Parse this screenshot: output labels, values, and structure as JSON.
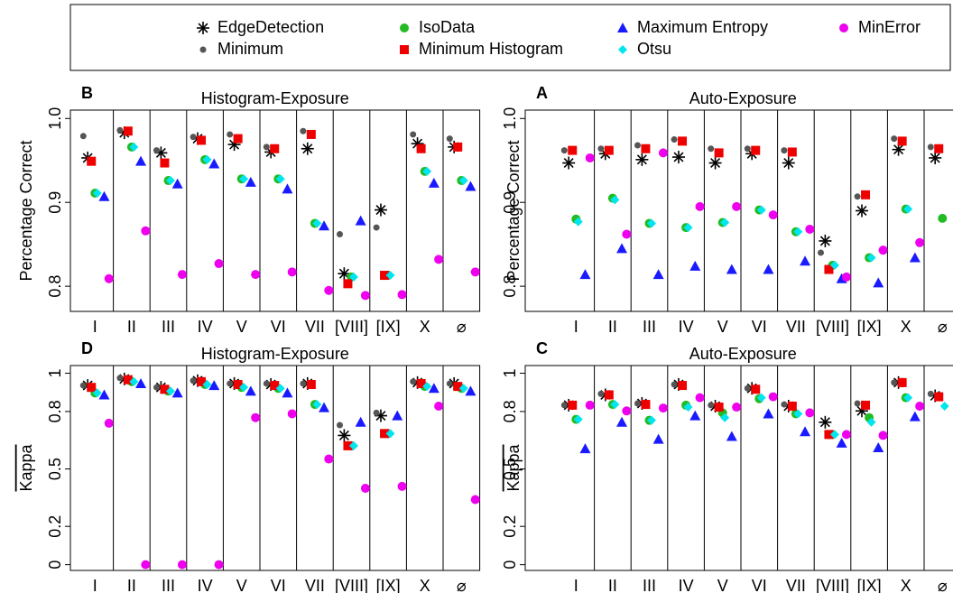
{
  "legend": {
    "entries": [
      {
        "name": "EdgeDetection",
        "color": "#000000",
        "marker": "asterisk"
      },
      {
        "name": "Minimum",
        "color": "#555555",
        "marker": "dot"
      },
      {
        "name": "IsoData",
        "color": "#22bb22",
        "marker": "circle"
      },
      {
        "name": "Minimum Histogram",
        "color": "#ee0000",
        "marker": "square"
      },
      {
        "name": "Maximum Entropy",
        "color": "#1a1aff",
        "marker": "triangle"
      },
      {
        "name": "Otsu",
        "color": "#00e5ee",
        "marker": "diamond"
      },
      {
        "name": "MinError",
        "color": "#ee00ee",
        "marker": "circle2"
      }
    ]
  },
  "chart_data": [
    {
      "type": "dot",
      "panel": "B",
      "title": "Histogram-Exposure",
      "y_label": "Percentage Correct",
      "categories": [
        "I",
        "II",
        "III",
        "IV",
        "V",
        "VI",
        "VII",
        "[VIII]",
        "[IX]",
        "X",
        "⌀"
      ],
      "ylim": [
        0.77,
        1.01
      ],
      "yticks": [
        {
          "value": 0.8,
          "label": "0.8"
        },
        {
          "value": 0.9,
          "label": "0.9"
        },
        {
          "value": 1.0,
          "label": "1.0"
        }
      ],
      "series": [
        {
          "name": "EdgeDetection",
          "values": [
            0.953,
            0.983,
            0.959,
            0.976,
            0.969,
            0.96,
            0.964,
            0.815,
            0.891,
            0.97,
            0.966
          ]
        },
        {
          "name": "Minimum",
          "values": [
            0.979,
            0.986,
            0.962,
            0.978,
            0.981,
            0.966,
            0.985,
            0.862,
            0.87,
            0.981,
            0.976
          ]
        },
        {
          "name": "IsoData",
          "values": [
            0.911,
            0.966,
            0.926,
            0.951,
            0.928,
            0.928,
            0.875,
            0.811,
            0.813,
            0.937,
            0.926
          ]
        },
        {
          "name": "Minimum Histogram",
          "values": [
            0.949,
            0.985,
            0.947,
            0.974,
            0.976,
            0.964,
            0.981,
            0.803,
            0.813,
            0.964,
            0.966
          ]
        },
        {
          "name": "Maximum Entropy",
          "values": [
            0.907,
            0.949,
            0.922,
            0.946,
            0.924,
            0.916,
            0.872,
            0.878,
            null,
            0.923,
            0.919
          ]
        },
        {
          "name": "Otsu",
          "values": [
            0.911,
            0.966,
            0.926,
            0.951,
            0.928,
            0.928,
            0.875,
            0.811,
            0.813,
            0.937,
            0.926
          ]
        },
        {
          "name": "MinError",
          "values": [
            0.809,
            0.866,
            0.814,
            0.827,
            0.814,
            0.817,
            0.795,
            0.789,
            0.79,
            0.832,
            0.817
          ]
        }
      ]
    },
    {
      "type": "dot",
      "panel": "A",
      "title": "Auto-Exposure",
      "y_label": "Percentage Correct",
      "categories": [
        "I",
        "II",
        "III",
        "IV",
        "V",
        "VI",
        "VII",
        "[VIII]",
        "[IX]",
        "X",
        "⌀"
      ],
      "ylim": [
        0.77,
        1.01
      ],
      "yticks": [
        {
          "value": 0.8,
          "label": "0.8"
        },
        {
          "value": 0.9,
          "label": "0.9"
        },
        {
          "value": 1.0,
          "label": "1.0"
        }
      ],
      "series": [
        {
          "name": "EdgeDetection",
          "values": [
            0.947,
            0.958,
            0.951,
            0.954,
            0.947,
            0.958,
            0.947,
            0.854,
            0.89,
            0.963,
            0.953
          ]
        },
        {
          "name": "Minimum",
          "values": [
            0.962,
            0.964,
            0.968,
            0.975,
            0.964,
            0.964,
            0.962,
            0.84,
            0.907,
            0.976,
            0.966
          ]
        },
        {
          "name": "IsoData",
          "values": [
            0.88,
            0.905,
            0.875,
            0.87,
            0.876,
            0.891,
            0.865,
            0.825,
            0.834,
            0.892,
            0.881
          ]
        },
        {
          "name": "Minimum Histogram",
          "values": [
            0.962,
            0.962,
            0.964,
            0.973,
            0.959,
            0.962,
            0.96,
            0.82,
            0.909,
            0.973,
            0.964
          ]
        },
        {
          "name": "Maximum Entropy",
          "values": [
            0.814,
            0.845,
            0.814,
            0.824,
            0.82,
            0.82,
            0.83,
            0.809,
            0.804,
            0.834,
            null
          ]
        },
        {
          "name": "Otsu",
          "values": [
            0.877,
            0.903,
            0.875,
            0.87,
            0.876,
            0.891,
            0.865,
            0.825,
            0.834,
            0.892,
            null
          ]
        },
        {
          "name": "MinError",
          "values": [
            0.953,
            0.862,
            0.959,
            0.895,
            0.895,
            0.885,
            0.868,
            0.811,
            0.843,
            0.852,
            0.895
          ]
        }
      ]
    },
    {
      "type": "dot",
      "panel": "D",
      "title": "Histogram-Exposure",
      "y_label": "Kappa",
      "categories": [
        "I",
        "II",
        "III",
        "IV",
        "V",
        "VI",
        "VII",
        "[VIII]",
        "[IX]",
        "X",
        "⌀"
      ],
      "ylim": [
        -0.03,
        1.04
      ],
      "yticks": [
        0,
        0.2,
        0.5,
        0.8,
        1
      ],
      "series": [
        {
          "name": "EdgeDetection",
          "values": [
            0.936,
            0.97,
            0.926,
            0.961,
            0.946,
            0.941,
            0.946,
            0.675,
            0.778,
            0.951,
            0.946
          ]
        },
        {
          "name": "Minimum",
          "values": [
            0.936,
            0.975,
            0.926,
            0.961,
            0.946,
            0.946,
            0.946,
            0.729,
            0.793,
            0.956,
            0.946
          ]
        },
        {
          "name": "IsoData",
          "values": [
            0.897,
            0.956,
            0.906,
            0.941,
            0.926,
            0.921,
            0.837,
            0.621,
            0.685,
            0.931,
            0.921
          ]
        },
        {
          "name": "Minimum Histogram",
          "values": [
            0.926,
            0.966,
            0.916,
            0.956,
            0.941,
            0.936,
            0.941,
            0.621,
            0.685,
            0.946,
            0.931
          ]
        },
        {
          "name": "Maximum Entropy",
          "values": [
            0.887,
            0.946,
            0.897,
            0.936,
            0.906,
            0.897,
            0.82,
            0.744,
            0.778,
            0.921,
            0.906
          ]
        },
        {
          "name": "Otsu",
          "values": [
            0.897,
            0.956,
            0.906,
            0.941,
            0.926,
            0.921,
            0.837,
            0.621,
            0.685,
            0.931,
            0.921
          ]
        },
        {
          "name": "MinError",
          "values": [
            0.739,
            0,
            0,
            0,
            0.768,
            0.788,
            0.552,
            0.399,
            0.409,
            0.828,
            0.34
          ]
        }
      ]
    },
    {
      "type": "dot",
      "panel": "C",
      "title": "Auto-Exposure",
      "y_label": "Kappa",
      "categories": [
        "I",
        "II",
        "III",
        "IV",
        "V",
        "VI",
        "VII",
        "[VIII]",
        "[IX]",
        "X",
        "⌀"
      ],
      "ylim": [
        -0.03,
        1.04
      ],
      "yticks": [
        0,
        0.2,
        0.5,
        0.8,
        1
      ],
      "series": [
        {
          "name": "EdgeDetection",
          "values": [
            0.833,
            0.887,
            0.842,
            0.941,
            0.828,
            0.921,
            0.828,
            0.744,
            0.803,
            0.951,
            0.882
          ]
        },
        {
          "name": "Minimum",
          "values": [
            0.833,
            0.892,
            0.842,
            0.941,
            0.833,
            0.921,
            0.837,
            null,
            0.842,
            0.951,
            0.892
          ]
        },
        {
          "name": "IsoData",
          "values": [
            0.759,
            0.837,
            0.754,
            0.833,
            0.793,
            0.867,
            0.788,
            0.68,
            0.768,
            0.872,
            null
          ]
        },
        {
          "name": "Minimum Histogram",
          "values": [
            0.833,
            0.887,
            0.837,
            0.936,
            0.823,
            0.916,
            0.828,
            0.68,
            0.833,
            0.951,
            0.877
          ]
        },
        {
          "name": "Maximum Entropy",
          "values": [
            0.606,
            0.744,
            0.655,
            0.778,
            0.67,
            0.788,
            0.695,
            0.635,
            0.611,
            0.773,
            null
          ]
        },
        {
          "name": "Otsu",
          "values": [
            0.759,
            0.837,
            0.754,
            0.823,
            0.768,
            0.872,
            0.788,
            0.68,
            0.744,
            0.872,
            0.828
          ]
        },
        {
          "name": "MinError",
          "values": [
            0.833,
            0.803,
            0.818,
            0.872,
            0.823,
            0.877,
            0.793,
            0.68,
            0.675,
            0.828,
            0.823
          ]
        }
      ]
    }
  ]
}
